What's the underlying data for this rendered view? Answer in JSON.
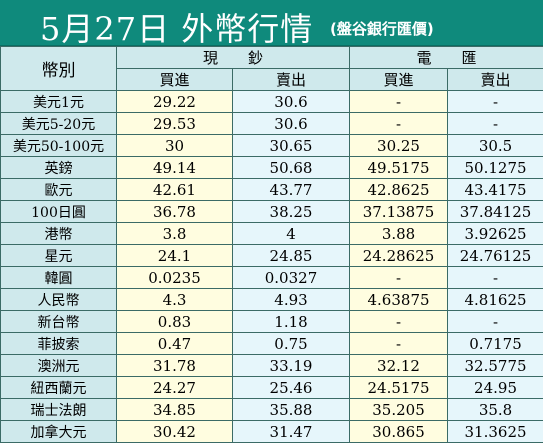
{
  "title": {
    "main": "5月27日 外幣行情",
    "sub": "(盤谷銀行匯價)"
  },
  "header": {
    "currency_label": "幣別",
    "cash_label": "現　　鈔",
    "transfer_label": "電　　匯",
    "buy_label": "買進",
    "sell_label": "賣出"
  },
  "rows": [
    {
      "name": "美元1元",
      "cash_buy": "29.22",
      "cash_sell": "30.6",
      "tt_buy": "-",
      "tt_sell": "-"
    },
    {
      "name": "美元5-20元",
      "cash_buy": "29.53",
      "cash_sell": "30.6",
      "tt_buy": "-",
      "tt_sell": "-"
    },
    {
      "name": "美元50-100元",
      "cash_buy": "30",
      "cash_sell": "30.65",
      "tt_buy": "30.25",
      "tt_sell": "30.5"
    },
    {
      "name": "英鎊",
      "cash_buy": "49.14",
      "cash_sell": "50.68",
      "tt_buy": "49.5175",
      "tt_sell": "50.1275"
    },
    {
      "name": "歐元",
      "cash_buy": "42.61",
      "cash_sell": "43.77",
      "tt_buy": "42.8625",
      "tt_sell": "43.4175"
    },
    {
      "name": "100日圓",
      "cash_buy": "36.78",
      "cash_sell": "38.25",
      "tt_buy": "37.13875",
      "tt_sell": "37.84125"
    },
    {
      "name": "港幣",
      "cash_buy": "3.8",
      "cash_sell": "4",
      "tt_buy": "3.88",
      "tt_sell": "3.92625"
    },
    {
      "name": "星元",
      "cash_buy": "24.1",
      "cash_sell": "24.85",
      "tt_buy": "24.28625",
      "tt_sell": "24.76125"
    },
    {
      "name": "韓圓",
      "cash_buy": "0.0235",
      "cash_sell": "0.0327",
      "tt_buy": "-",
      "tt_sell": "-"
    },
    {
      "name": "人民幣",
      "cash_buy": "4.3",
      "cash_sell": "4.93",
      "tt_buy": "4.63875",
      "tt_sell": "4.81625"
    },
    {
      "name": "新台幣",
      "cash_buy": "0.83",
      "cash_sell": "1.18",
      "tt_buy": "-",
      "tt_sell": "-"
    },
    {
      "name": "菲披索",
      "cash_buy": "0.47",
      "cash_sell": "0.75",
      "tt_buy": "-",
      "tt_sell": "0.7175"
    },
    {
      "name": "澳洲元",
      "cash_buy": "31.78",
      "cash_sell": "33.19",
      "tt_buy": "32.12",
      "tt_sell": "32.5775"
    },
    {
      "name": "紐西蘭元",
      "cash_buy": "24.27",
      "cash_sell": "25.46",
      "tt_buy": "24.5175",
      "tt_sell": "24.95"
    },
    {
      "name": "瑞士法朗",
      "cash_buy": "34.85",
      "cash_sell": "35.88",
      "tt_buy": "35.205",
      "tt_sell": "35.8"
    },
    {
      "name": "加拿大元",
      "cash_buy": "30.42",
      "cash_sell": "31.47",
      "tt_buy": "30.865",
      "tt_sell": "31.3625"
    }
  ]
}
